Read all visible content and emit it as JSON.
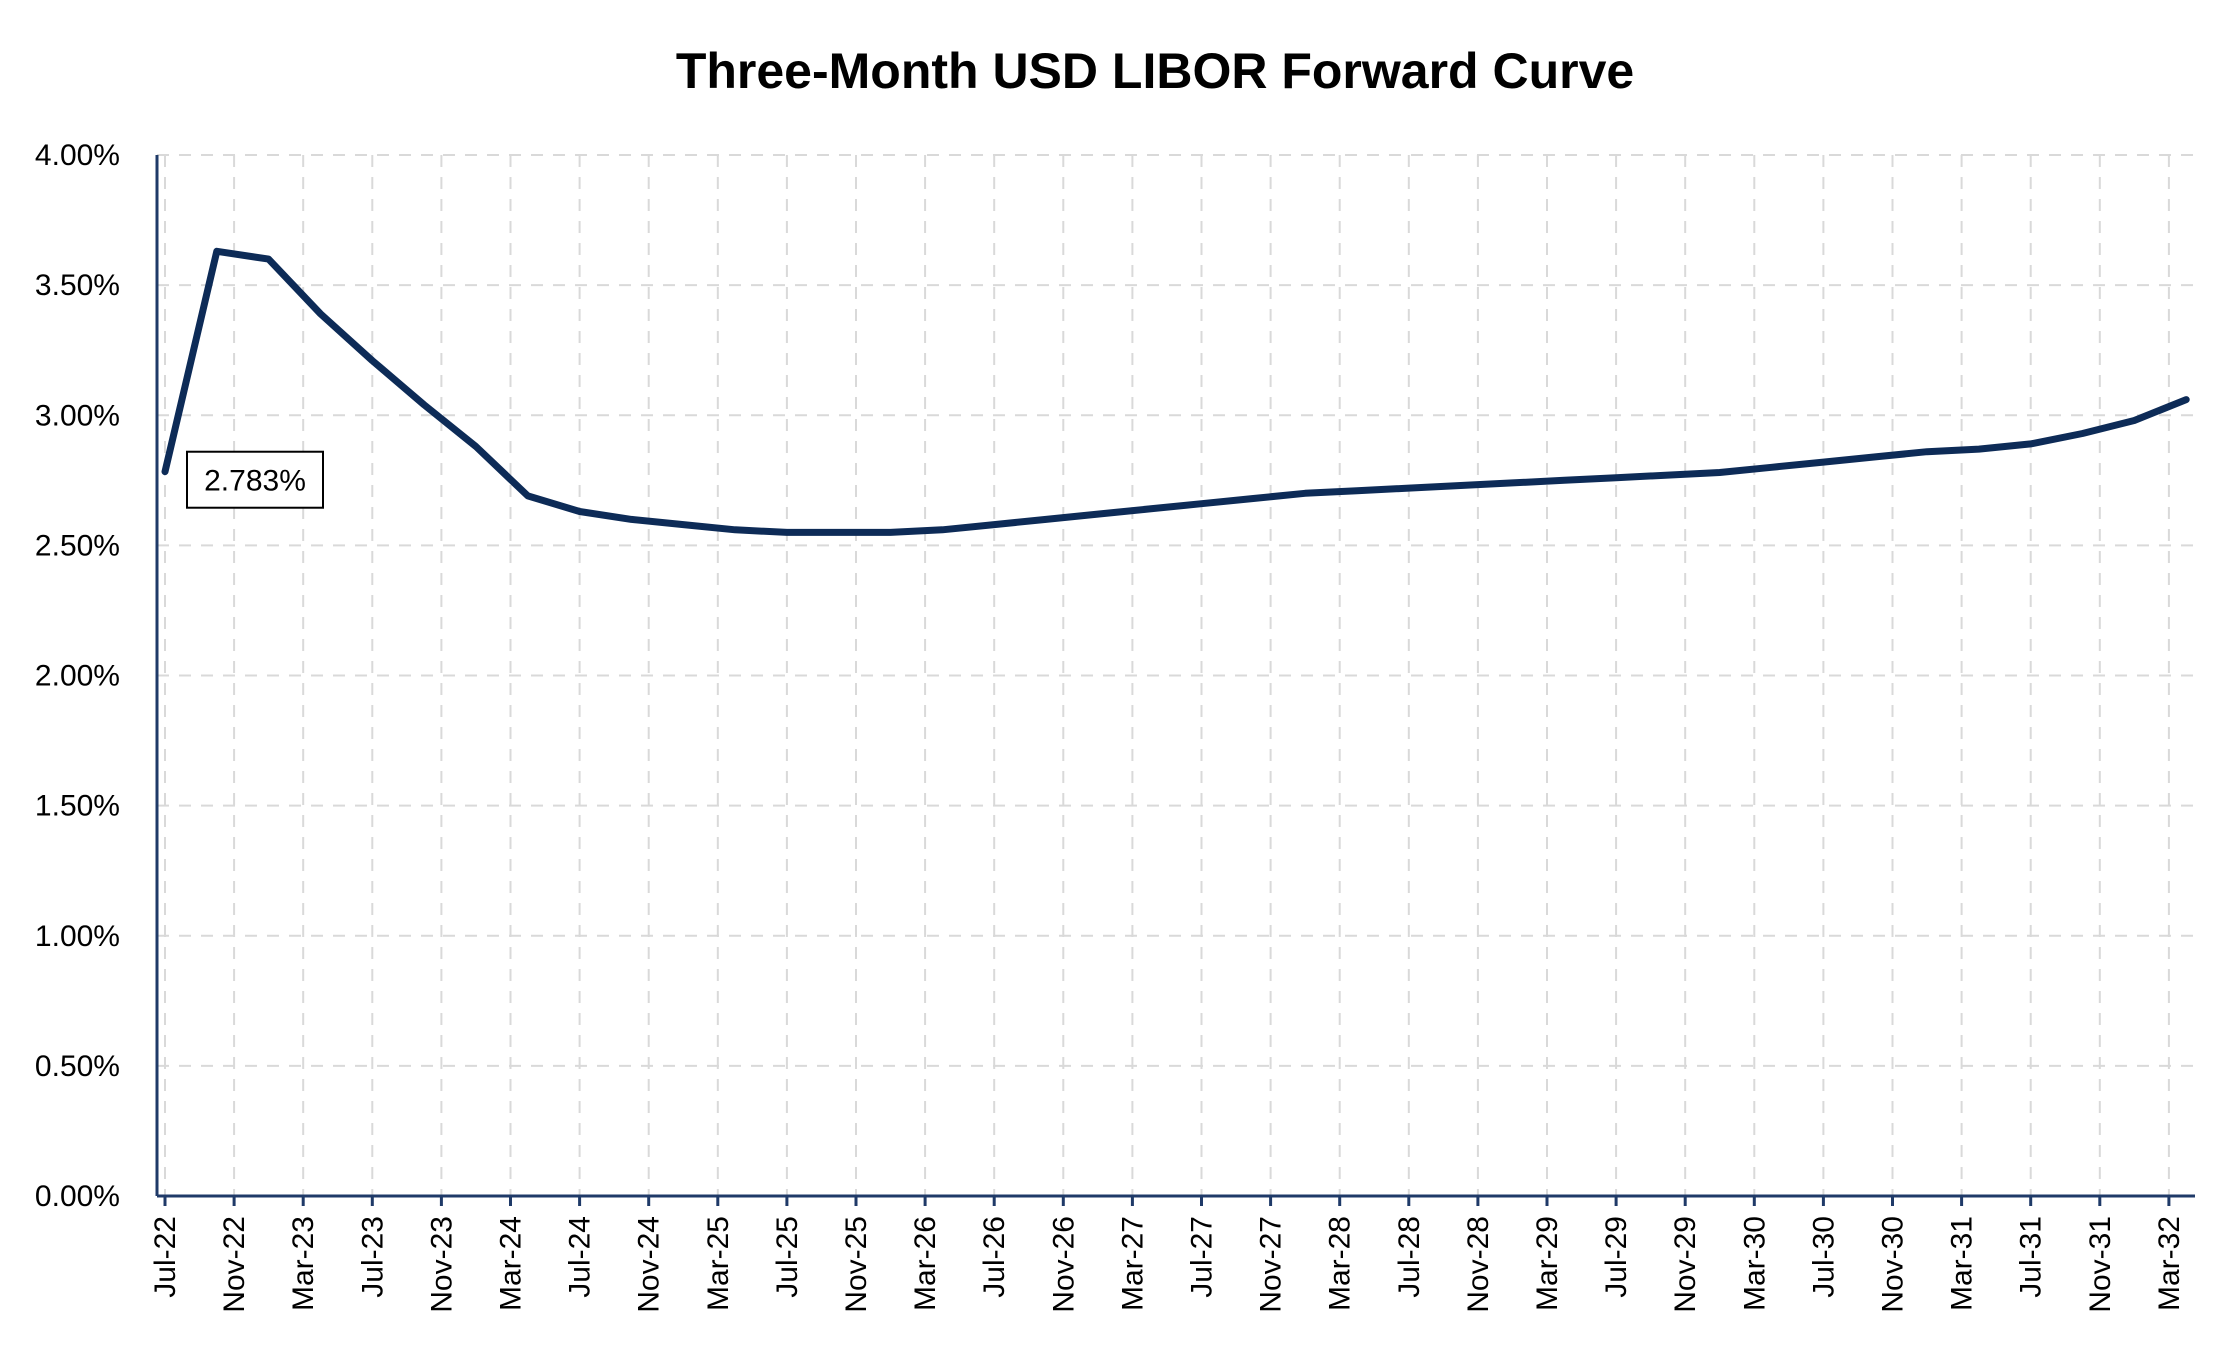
{
  "chart_data": {
    "type": "line",
    "title": "Three-Month USD LIBOR Forward Curve",
    "xlabel": "",
    "ylabel": "",
    "ylim": [
      0,
      4
    ],
    "y_ticks": [
      "0.00%",
      "0.50%",
      "1.00%",
      "1.50%",
      "2.00%",
      "2.50%",
      "3.00%",
      "3.50%",
      "4.00%"
    ],
    "x_ticks": [
      "Jul-22",
      "Nov-22",
      "Mar-23",
      "Jul-23",
      "Nov-23",
      "Mar-24",
      "Jul-24",
      "Nov-24",
      "Mar-25",
      "Jul-25",
      "Nov-25",
      "Mar-26",
      "Jul-26",
      "Nov-26",
      "Mar-27",
      "Jul-27",
      "Nov-27",
      "Mar-28",
      "Jul-28",
      "Nov-28",
      "Mar-29",
      "Jul-29",
      "Nov-29",
      "Mar-30",
      "Jul-30",
      "Nov-30",
      "Mar-31",
      "Jul-31",
      "Nov-31",
      "Mar-32"
    ],
    "grid": true,
    "legend": "none",
    "annotation": {
      "label": "2.783%",
      "x": "Jul-22",
      "value": 2.783
    },
    "series": [
      {
        "color": "#0d2b57",
        "x": [
          "Jul-22",
          "Oct-22",
          "Jan-23",
          "Apr-23",
          "Jul-23",
          "Oct-23",
          "Jan-24",
          "Apr-24",
          "Jul-24",
          "Oct-24",
          "Jan-25",
          "Apr-25",
          "Jul-25",
          "Oct-25",
          "Jan-26",
          "Apr-26",
          "Jul-26",
          "Oct-26",
          "Jan-27",
          "Apr-27",
          "Jul-27",
          "Oct-27",
          "Jan-28",
          "Apr-28",
          "Jul-28",
          "Oct-28",
          "Jan-29",
          "Apr-29",
          "Jul-29",
          "Oct-29",
          "Jan-30",
          "Apr-30",
          "Jul-30",
          "Oct-30",
          "Jan-31",
          "Apr-31",
          "Jul-31",
          "Oct-31",
          "Jan-32",
          "Apr-32"
        ],
        "values": [
          2.783,
          3.63,
          3.6,
          3.39,
          3.21,
          3.04,
          2.88,
          2.69,
          2.63,
          2.6,
          2.58,
          2.56,
          2.55,
          2.55,
          2.55,
          2.56,
          2.58,
          2.6,
          2.62,
          2.64,
          2.66,
          2.68,
          2.7,
          2.71,
          2.72,
          2.73,
          2.74,
          2.75,
          2.76,
          2.77,
          2.78,
          2.8,
          2.82,
          2.84,
          2.86,
          2.87,
          2.89,
          2.93,
          2.98,
          3.06
        ]
      }
    ]
  }
}
